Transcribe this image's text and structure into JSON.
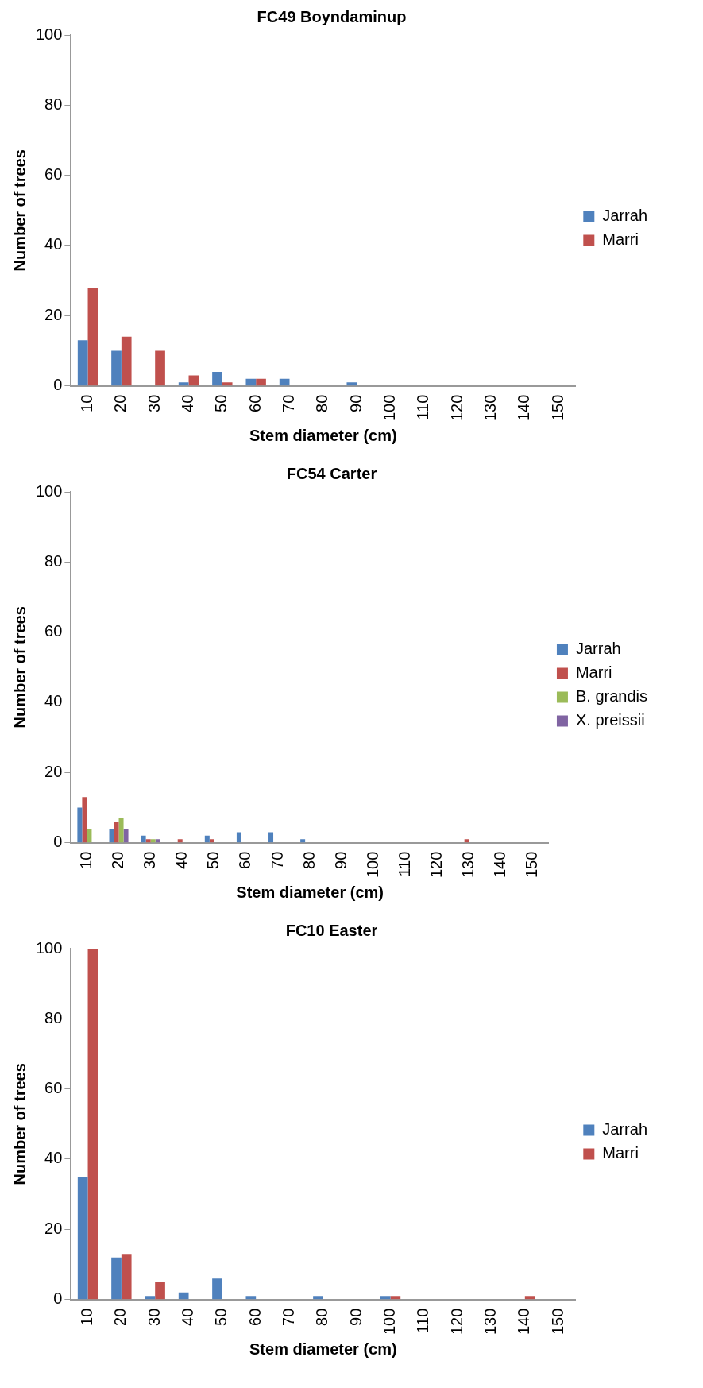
{
  "chart_data": [
    {
      "type": "bar",
      "title": "FC49 Boyndaminup",
      "xlabel": "Stem diameter (cm)",
      "ylabel": "Number of trees",
      "categories": [
        "10",
        "20",
        "30",
        "40",
        "50",
        "60",
        "70",
        "80",
        "90",
        "100",
        "110",
        "120",
        "130",
        "140",
        "150"
      ],
      "series": [
        {
          "name": "Jarrah",
          "color": "#4f81bd",
          "values": [
            13,
            10,
            0,
            1,
            4,
            2,
            2,
            0,
            1,
            0,
            0,
            0,
            0,
            0,
            0
          ]
        },
        {
          "name": "Marri",
          "color": "#c0504d",
          "values": [
            28,
            14,
            10,
            3,
            1,
            2,
            0,
            0,
            0,
            0,
            0,
            0,
            0,
            0,
            0
          ]
        }
      ],
      "ylim": [
        0,
        100
      ],
      "yticks": [
        0,
        20,
        40,
        60,
        80,
        100
      ],
      "grid": false,
      "legend": "right"
    },
    {
      "type": "bar",
      "title": "FC54 Carter",
      "xlabel": "Stem diameter (cm)",
      "ylabel": "Number of trees",
      "categories": [
        "10",
        "20",
        "30",
        "40",
        "50",
        "60",
        "70",
        "80",
        "90",
        "100",
        "110",
        "120",
        "130",
        "140",
        "150"
      ],
      "series": [
        {
          "name": "Jarrah",
          "color": "#4f81bd",
          "values": [
            10,
            4,
            2,
            0,
            2,
            3,
            3,
            1,
            0,
            0,
            0,
            0,
            0,
            0,
            0
          ]
        },
        {
          "name": "Marri",
          "color": "#c0504d",
          "values": [
            13,
            6,
            1,
            1,
            1,
            0,
            0,
            0,
            0,
            0,
            0,
            0,
            1,
            0,
            0
          ]
        },
        {
          "name": "B. grandis",
          "color": "#9bbb59",
          "values": [
            4,
            7,
            1,
            0,
            0,
            0,
            0,
            0,
            0,
            0,
            0,
            0,
            0,
            0,
            0
          ]
        },
        {
          "name": "X. preissii",
          "color": "#8064a2",
          "values": [
            0,
            4,
            1,
            0,
            0,
            0,
            0,
            0,
            0,
            0,
            0,
            0,
            0,
            0,
            0
          ]
        }
      ],
      "ylim": [
        0,
        100
      ],
      "yticks": [
        0,
        20,
        40,
        60,
        80,
        100
      ],
      "grid": false,
      "legend": "right"
    },
    {
      "type": "bar",
      "title": "FC10 Easter",
      "xlabel": "Stem diameter (cm)",
      "ylabel": "Number of trees",
      "categories": [
        "10",
        "20",
        "30",
        "40",
        "50",
        "60",
        "70",
        "80",
        "90",
        "100",
        "110",
        "120",
        "130",
        "140",
        "150"
      ],
      "series": [
        {
          "name": "Jarrah",
          "color": "#4f81bd",
          "values": [
            35,
            12,
            1,
            2,
            6,
            1,
            0,
            1,
            0,
            1,
            0,
            0,
            0,
            0,
            0
          ]
        },
        {
          "name": "Marri",
          "color": "#c0504d",
          "values": [
            100,
            13,
            5,
            0,
            0,
            0,
            0,
            0,
            0,
            1,
            0,
            0,
            0,
            1,
            0
          ]
        }
      ],
      "ylim": [
        0,
        100
      ],
      "yticks": [
        0,
        20,
        40,
        60,
        80,
        100
      ],
      "grid": false,
      "legend": "right"
    }
  ]
}
